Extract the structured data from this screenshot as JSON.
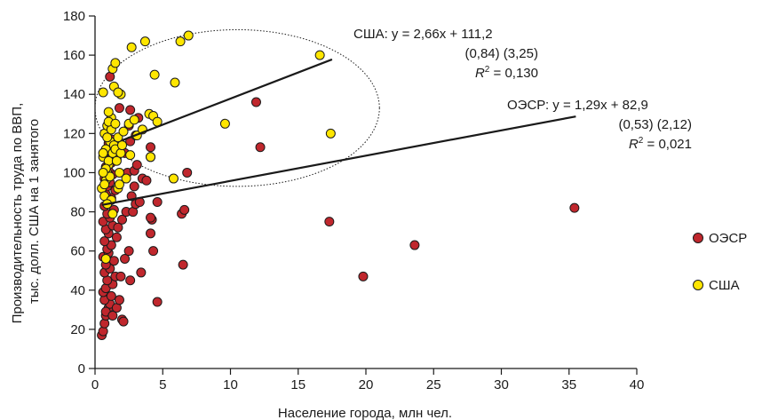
{
  "chart_data": {
    "type": "scatter",
    "xlabel": "Население города, млн чел.",
    "ylabel_line1": "Производительность труда по ВВП,",
    "ylabel_line2": "тыс. долл. США на 1 занятого",
    "xlim": [
      0,
      40
    ],
    "ylim": [
      0,
      180
    ],
    "x_ticks": [
      "0",
      "5",
      "10",
      "15",
      "20",
      "25",
      "30",
      "35",
      "40"
    ],
    "y_ticks": [
      "0",
      "20",
      "40",
      "60",
      "80",
      "100",
      "120",
      "140",
      "160",
      "180"
    ],
    "grid": false,
    "legend_placement": "right",
    "colors": {
      "oecd": "#c0272d",
      "usa": "#ffe600",
      "marker_edge": "#1a1a1a",
      "axis": "#1a1a1a"
    },
    "series": [
      {
        "name": "ОЭСР",
        "color": "#c0272d",
        "points": [
          [
            0.5,
            17
          ],
          [
            0.6,
            19
          ],
          [
            0.7,
            23
          ],
          [
            0.8,
            27
          ],
          [
            0.9,
            29
          ],
          [
            1.0,
            31
          ],
          [
            1.1,
            33
          ],
          [
            0.7,
            35
          ],
          [
            1.2,
            37
          ],
          [
            0.6,
            39
          ],
          [
            0.8,
            41
          ],
          [
            1.3,
            43
          ],
          [
            0.9,
            45
          ],
          [
            1.5,
            47
          ],
          [
            0.7,
            49
          ],
          [
            1.1,
            51
          ],
          [
            0.8,
            53
          ],
          [
            1.4,
            55
          ],
          [
            0.6,
            57
          ],
          [
            1.0,
            59
          ],
          [
            0.9,
            61
          ],
          [
            1.2,
            63
          ],
          [
            0.7,
            65
          ],
          [
            1.6,
            67
          ],
          [
            1.0,
            69
          ],
          [
            0.8,
            71
          ],
          [
            1.3,
            73
          ],
          [
            0.6,
            75
          ],
          [
            1.1,
            77
          ],
          [
            0.9,
            79
          ],
          [
            1.4,
            81
          ],
          [
            0.7,
            83
          ],
          [
            1.0,
            85
          ],
          [
            1.2,
            87
          ],
          [
            0.8,
            89
          ],
          [
            1.5,
            91
          ],
          [
            0.9,
            93
          ],
          [
            1.1,
            95
          ],
          [
            0.7,
            97
          ],
          [
            1.3,
            99
          ],
          [
            1.0,
            101
          ],
          [
            0.8,
            103
          ],
          [
            1.2,
            105
          ],
          [
            1.6,
            107
          ],
          [
            0.9,
            109
          ],
          [
            1.1,
            111
          ],
          [
            1.4,
            113
          ],
          [
            1.0,
            115
          ],
          [
            1.2,
            117
          ],
          [
            0.8,
            29
          ],
          [
            1.3,
            27
          ],
          [
            1.6,
            31
          ],
          [
            1.8,
            35
          ],
          [
            2.0,
            25
          ],
          [
            2.1,
            24
          ],
          [
            1.9,
            47
          ],
          [
            2.2,
            56
          ],
          [
            2.5,
            60
          ],
          [
            2.6,
            45
          ],
          [
            1.7,
            72
          ],
          [
            2.0,
            76
          ],
          [
            2.3,
            80
          ],
          [
            2.8,
            80
          ],
          [
            3.0,
            84
          ],
          [
            3.3,
            85
          ],
          [
            2.7,
            88
          ],
          [
            2.9,
            93
          ],
          [
            3.5,
            97
          ],
          [
            3.8,
            96
          ],
          [
            2.4,
            100
          ],
          [
            2.9,
            101
          ],
          [
            3.1,
            104
          ],
          [
            2.2,
            110
          ],
          [
            2.6,
            116
          ],
          [
            3.0,
            119
          ],
          [
            2.5,
            124
          ],
          [
            3.2,
            128
          ],
          [
            2.6,
            132
          ],
          [
            1.8,
            133
          ],
          [
            3.4,
            49
          ],
          [
            4.3,
            60
          ],
          [
            4.1,
            69
          ],
          [
            4.2,
            76
          ],
          [
            4.1,
            77
          ],
          [
            4.6,
            85
          ],
          [
            4.6,
            34
          ],
          [
            4.1,
            108
          ],
          [
            4.1,
            113
          ],
          [
            6.5,
            53
          ],
          [
            6.4,
            79
          ],
          [
            6.6,
            81
          ],
          [
            6.8,
            100
          ],
          [
            1.1,
            149
          ],
          [
            11.9,
            136
          ],
          [
            12.2,
            113
          ],
          [
            17.3,
            75
          ],
          [
            19.8,
            47
          ],
          [
            23.6,
            63
          ],
          [
            35.4,
            82
          ]
        ]
      },
      {
        "name": "США",
        "color": "#ffe600",
        "points": [
          [
            0.5,
            92
          ],
          [
            0.7,
            88
          ],
          [
            0.8,
            96
          ],
          [
            0.9,
            100
          ],
          [
            1.0,
            104
          ],
          [
            0.6,
            108
          ],
          [
            0.8,
            112
          ],
          [
            1.1,
            116
          ],
          [
            0.7,
            120
          ],
          [
            0.9,
            124
          ],
          [
            1.2,
            128
          ],
          [
            0.6,
            110
          ],
          [
            1.0,
            106
          ],
          [
            1.3,
            110
          ],
          [
            0.8,
            102
          ],
          [
            1.1,
            98
          ],
          [
            0.7,
            94
          ],
          [
            1.4,
            114
          ],
          [
            0.9,
            118
          ],
          [
            1.2,
            122
          ],
          [
            1.0,
            126
          ],
          [
            0.6,
            100
          ],
          [
            1.5,
            112
          ],
          [
            0.8,
            56
          ],
          [
            1.3,
            79
          ],
          [
            1.2,
            86
          ],
          [
            1.7,
            92
          ],
          [
            1.8,
            100
          ],
          [
            1.6,
            106
          ],
          [
            1.9,
            110
          ],
          [
            2.0,
            114
          ],
          [
            1.7,
            118
          ],
          [
            2.1,
            121
          ],
          [
            1.5,
            125
          ],
          [
            2.3,
            97
          ],
          [
            2.6,
            109
          ],
          [
            2.5,
            125
          ],
          [
            2.9,
            127
          ],
          [
            3.1,
            119
          ],
          [
            3.5,
            122
          ],
          [
            4.0,
            130
          ],
          [
            4.3,
            129
          ],
          [
            4.6,
            126
          ],
          [
            1.0,
            131
          ],
          [
            0.6,
            141
          ],
          [
            1.4,
            144
          ],
          [
            1.9,
            140
          ],
          [
            1.7,
            141
          ],
          [
            1.3,
            153
          ],
          [
            1.5,
            156
          ],
          [
            2.7,
            164
          ],
          [
            3.7,
            167
          ],
          [
            4.4,
            150
          ],
          [
            5.8,
            97
          ],
          [
            5.9,
            146
          ],
          [
            6.3,
            167
          ],
          [
            6.9,
            170
          ],
          [
            9.6,
            125
          ],
          [
            16.6,
            160
          ],
          [
            17.4,
            120
          ],
          [
            4.1,
            108
          ],
          [
            1.8,
            94
          ],
          [
            0.9,
            84
          ]
        ]
      }
    ],
    "regression_lines": [
      {
        "name": "США",
        "x": [
          2.0,
          17.5
        ],
        "y": [
          116.5,
          157.8
        ]
      },
      {
        "name": "ОЭСР",
        "x": [
          0.5,
          35.5
        ],
        "y": [
          83.5,
          128.7
        ]
      }
    ],
    "confidence_ellipse": {
      "series": "США",
      "center_x": 10.5,
      "center_y": 133,
      "radius_x": 10.5,
      "radius_y": 40
    },
    "annotations": {
      "usa": {
        "line1_prefix": "США: ",
        "line1_eq": "y = 2,66x + 111,2",
        "line2": "(0,84)   (3,25)",
        "line3_prefix": "R",
        "line3_sup": "2",
        "line3_value": " = 0,130"
      },
      "oecd": {
        "line1_prefix": "ОЭСР: ",
        "line1_eq": "y = 1,29x + 82,9",
        "line2": "(0,53)   (2,12)",
        "line3_prefix": "R",
        "line3_sup": "2",
        "line3_value": " = 0,021"
      }
    },
    "legend": [
      {
        "label": "ОЭСР",
        "color": "#c0272d"
      },
      {
        "label": "США",
        "color": "#ffe600"
      }
    ]
  }
}
